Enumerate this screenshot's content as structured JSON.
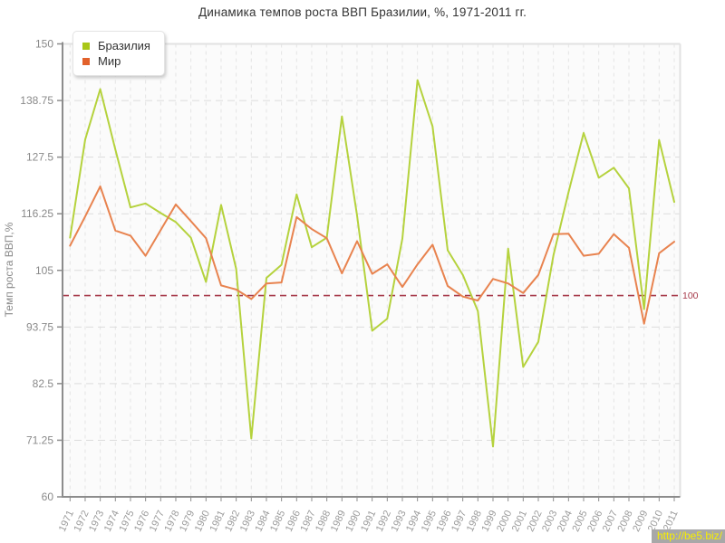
{
  "page": {
    "watermark": "http://be5.biz/"
  },
  "chart_data": {
    "type": "line",
    "title": "Динамика темпов роста ВВП Бразилии, %, 1971-2011 гг.",
    "xlabel": "",
    "ylabel": "Темп роста ВВП,%",
    "ylim": [
      60,
      150
    ],
    "yticks": [
      "150",
      "138.75",
      "127.5",
      "116.25",
      "105",
      "93.75",
      "82.5",
      "71.25",
      "60"
    ],
    "grid": true,
    "legend_position": "top-left",
    "categories": [
      "1971",
      "1972",
      "1973",
      "1974",
      "1975",
      "1976",
      "1977",
      "1978",
      "1979",
      "1980",
      "1981",
      "1982",
      "1983",
      "1984",
      "1985",
      "1986",
      "1987",
      "1988",
      "1989",
      "1990",
      "1991",
      "1992",
      "1993",
      "1994",
      "1995",
      "1996",
      "1997",
      "1998",
      "1999",
      "2000",
      "2001",
      "2002",
      "2003",
      "2004",
      "2005",
      "2006",
      "2007",
      "2008",
      "2009",
      "2010",
      "2011"
    ],
    "series": [
      {
        "name": "Бразилия",
        "color": "#b5d23d",
        "swatch": "#a9c717",
        "values": [
          111.5,
          131.0,
          141.0,
          129.0,
          117.5,
          118.3,
          116.4,
          114.6,
          111.5,
          102.7,
          118.0,
          105.3,
          71.6,
          103.5,
          106.1,
          120.1,
          109.6,
          111.5,
          135.6,
          115.9,
          93.0,
          95.4,
          111.3,
          142.8,
          133.6,
          109.0,
          104.1,
          96.9,
          70.0,
          109.3,
          85.8,
          90.8,
          108.0,
          120.5,
          132.3,
          123.4,
          125.4,
          121.3,
          97.3,
          130.9,
          118.6
        ]
      },
      {
        "name": "Мир",
        "color": "#e8834f",
        "swatch": "#e2612b",
        "values": [
          109.9,
          115.7,
          121.7,
          112.9,
          111.9,
          107.9,
          113.0,
          118.1,
          114.8,
          111.4,
          102.0,
          101.2,
          99.3,
          102.4,
          102.6,
          115.6,
          113.2,
          111.4,
          104.4,
          110.8,
          104.3,
          106.2,
          101.7,
          106.2,
          110.1,
          101.9,
          99.8,
          99.0,
          103.3,
          102.4,
          100.5,
          104.1,
          112.2,
          112.3,
          107.9,
          108.3,
          112.2,
          109.5,
          94.4,
          108.4,
          110.7
        ]
      }
    ],
    "refline": {
      "value": 100,
      "label": "100",
      "color": "#a63a4a"
    }
  }
}
